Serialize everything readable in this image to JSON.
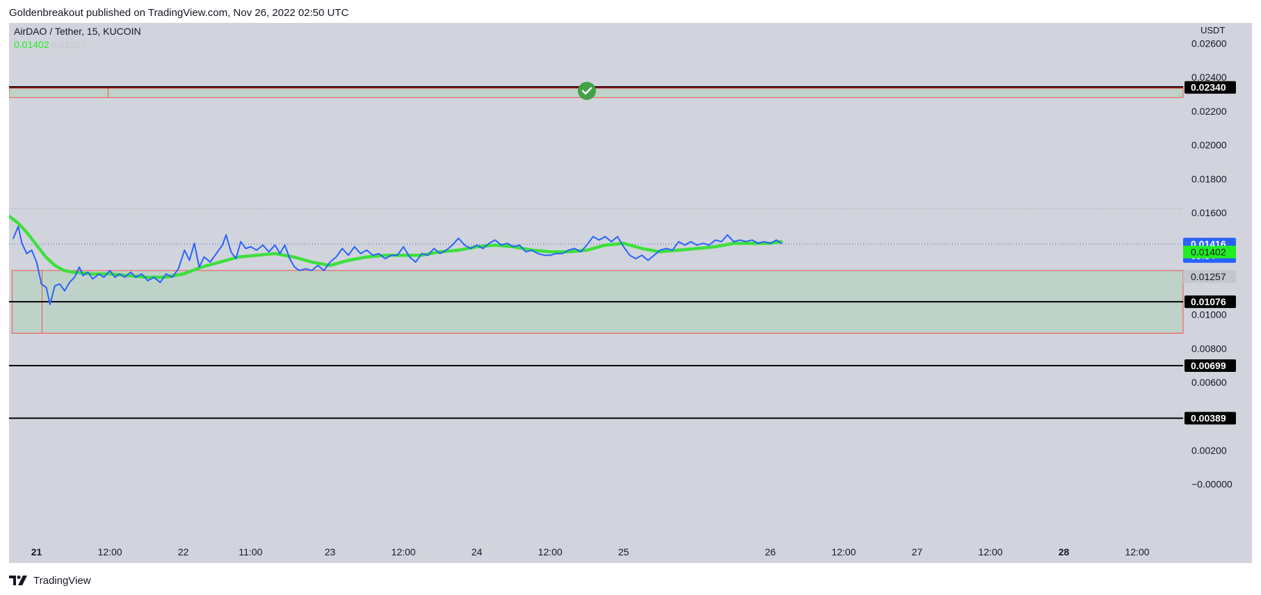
{
  "header": {
    "published_line": "Goldenbreakout published on TradingView.com, Nov 26, 2022 02:50 UTC"
  },
  "legend": {
    "symbol_line": "AirDAO / Tether, 15, KUCOIN",
    "value_1": "0.01402",
    "value_2": "0.01257"
  },
  "footer": {
    "brand": "TradingView"
  },
  "colors": {
    "price_line": "#2962ff",
    "ma_line": "#3de03d",
    "zone_fill": "#bcd1c6",
    "zone_border": "#ef5350",
    "level_line": "#000000",
    "check_badge": "#43a047",
    "background": "#d1d4dc"
  },
  "chart_data": {
    "type": "line",
    "symbol": "AirDAO / Tether",
    "interval": "15",
    "exchange": "KUCOIN",
    "y_unit": "USDT",
    "ylim": [
      -0.0001,
      0.0272
    ],
    "y_ticks": [
      "0.02600",
      "0.02400",
      "0.02200",
      "0.02000",
      "0.01800",
      "0.01600",
      "0.01000",
      "0.00800",
      "0.00600",
      "0.00200",
      "−0.00000"
    ],
    "y_tick_values": [
      0.026,
      0.024,
      0.022,
      0.02,
      0.018,
      0.016,
      0.01,
      0.008,
      0.006,
      0.002,
      0.0
    ],
    "x_range_hours": [
      -4.5,
      187.5
    ],
    "x_ticks": [
      {
        "label": "21",
        "h": 0,
        "bold": true
      },
      {
        "label": "12:00",
        "h": 12,
        "bold": false
      },
      {
        "label": "22",
        "h": 24,
        "bold": false
      },
      {
        "label": "11:00",
        "h": 35,
        "bold": false
      },
      {
        "label": "23",
        "h": 48,
        "bold": false
      },
      {
        "label": "12:00",
        "h": 60,
        "bold": false
      },
      {
        "label": "24",
        "h": 72,
        "bold": false
      },
      {
        "label": "12:00",
        "h": 84,
        "bold": false
      },
      {
        "label": "25",
        "h": 96,
        "bold": false
      },
      {
        "label": "26",
        "h": 120,
        "bold": false
      },
      {
        "label": "12:00",
        "h": 132,
        "bold": false
      },
      {
        "label": "27",
        "h": 144,
        "bold": false
      },
      {
        "label": "12:00",
        "h": 156,
        "bold": false
      },
      {
        "label": "28",
        "h": 168,
        "bold": true
      },
      {
        "label": "12:00",
        "h": 180,
        "bold": false
      }
    ],
    "series": [
      {
        "name": "",
        "color": "#2962ff",
        "points": [
          [
            -3.8,
            0.0145
          ],
          [
            -3.0,
            0.0152
          ],
          [
            -2.4,
            0.0142
          ],
          [
            -1.6,
            0.0136
          ],
          [
            -0.8,
            0.0138
          ],
          [
            0.0,
            0.0131
          ],
          [
            0.8,
            0.0118
          ],
          [
            1.6,
            0.0116
          ],
          [
            2.2,
            0.0106
          ],
          [
            3.0,
            0.0117
          ],
          [
            3.8,
            0.0118
          ],
          [
            4.6,
            0.0114
          ],
          [
            5.4,
            0.0119
          ],
          [
            6.2,
            0.0122
          ],
          [
            7.0,
            0.0128
          ],
          [
            7.6,
            0.0123
          ],
          [
            8.4,
            0.0125
          ],
          [
            9.2,
            0.0121
          ],
          [
            10.2,
            0.0124
          ],
          [
            11.0,
            0.0122
          ],
          [
            12.0,
            0.0126
          ],
          [
            12.8,
            0.0122
          ],
          [
            13.6,
            0.0124
          ],
          [
            14.4,
            0.0122
          ],
          [
            15.4,
            0.0125
          ],
          [
            16.2,
            0.0122
          ],
          [
            17.2,
            0.0124
          ],
          [
            18.2,
            0.012
          ],
          [
            19.2,
            0.0122
          ],
          [
            20.2,
            0.0119
          ],
          [
            21.2,
            0.0124
          ],
          [
            22.2,
            0.0122
          ],
          [
            23.2,
            0.0127
          ],
          [
            24.2,
            0.0138
          ],
          [
            25.0,
            0.0132
          ],
          [
            25.8,
            0.0142
          ],
          [
            26.6,
            0.0128
          ],
          [
            27.4,
            0.0134
          ],
          [
            28.4,
            0.0131
          ],
          [
            29.4,
            0.0136
          ],
          [
            30.4,
            0.0141
          ],
          [
            31.0,
            0.0147
          ],
          [
            31.8,
            0.0137
          ],
          [
            32.6,
            0.0133
          ],
          [
            33.4,
            0.0143
          ],
          [
            34.2,
            0.0139
          ],
          [
            35.0,
            0.014
          ],
          [
            36.0,
            0.0138
          ],
          [
            37.0,
            0.0141
          ],
          [
            38.0,
            0.0137
          ],
          [
            39.0,
            0.0141
          ],
          [
            39.8,
            0.0136
          ],
          [
            40.6,
            0.0141
          ],
          [
            41.4,
            0.0133
          ],
          [
            42.2,
            0.0128
          ],
          [
            43.0,
            0.0126
          ],
          [
            44.0,
            0.0127
          ],
          [
            45.0,
            0.0126
          ],
          [
            46.0,
            0.0129
          ],
          [
            47.0,
            0.0126
          ],
          [
            48.0,
            0.0131
          ],
          [
            49.0,
            0.0134
          ],
          [
            50.0,
            0.0139
          ],
          [
            51.0,
            0.0135
          ],
          [
            52.0,
            0.014
          ],
          [
            53.0,
            0.0136
          ],
          [
            54.0,
            0.0138
          ],
          [
            55.0,
            0.0135
          ],
          [
            56.0,
            0.0136
          ],
          [
            57.0,
            0.0133
          ],
          [
            58.0,
            0.0135
          ],
          [
            59.0,
            0.0135
          ],
          [
            60.0,
            0.014
          ],
          [
            61.0,
            0.0134
          ],
          [
            62.0,
            0.0131
          ],
          [
            63.0,
            0.0136
          ],
          [
            64.0,
            0.0135
          ],
          [
            65.0,
            0.0139
          ],
          [
            66.0,
            0.0136
          ],
          [
            67.0,
            0.0138
          ],
          [
            68.0,
            0.0141
          ],
          [
            69.0,
            0.0145
          ],
          [
            70.0,
            0.0141
          ],
          [
            71.0,
            0.0139
          ],
          [
            72.0,
            0.0141
          ],
          [
            73.0,
            0.0139
          ],
          [
            74.0,
            0.0142
          ],
          [
            75.0,
            0.0144
          ],
          [
            76.0,
            0.0141
          ],
          [
            77.0,
            0.0142
          ],
          [
            78.0,
            0.014
          ],
          [
            79.0,
            0.0141
          ],
          [
            80.0,
            0.0137
          ],
          [
            81.0,
            0.0138
          ],
          [
            82.0,
            0.0136
          ],
          [
            83.0,
            0.0135
          ],
          [
            84.0,
            0.0135
          ],
          [
            85.0,
            0.0136
          ],
          [
            86.0,
            0.0136
          ],
          [
            87.0,
            0.0138
          ],
          [
            88.0,
            0.0139
          ],
          [
            89.0,
            0.0137
          ],
          [
            90.0,
            0.0141
          ],
          [
            91.0,
            0.0146
          ],
          [
            92.0,
            0.0144
          ],
          [
            93.0,
            0.0146
          ],
          [
            94.0,
            0.0143
          ],
          [
            95.0,
            0.0146
          ],
          [
            96.0,
            0.014
          ],
          [
            97.0,
            0.0135
          ],
          [
            98.0,
            0.0133
          ],
          [
            99.0,
            0.0135
          ],
          [
            100.0,
            0.0132
          ],
          [
            101.0,
            0.0135
          ],
          [
            102.0,
            0.0138
          ],
          [
            103.0,
            0.0139
          ],
          [
            104.0,
            0.0138
          ],
          [
            105.0,
            0.0143
          ],
          [
            106.0,
            0.0141
          ],
          [
            107.0,
            0.0143
          ],
          [
            108.0,
            0.0141
          ],
          [
            109.0,
            0.0142
          ],
          [
            110.0,
            0.0141
          ],
          [
            111.0,
            0.0144
          ],
          [
            112.0,
            0.0143
          ],
          [
            113.0,
            0.0147
          ],
          [
            114.0,
            0.0143
          ],
          [
            115.0,
            0.0144
          ],
          [
            116.0,
            0.0143
          ],
          [
            117.0,
            0.0144
          ],
          [
            118.0,
            0.0142
          ],
          [
            119.0,
            0.0143
          ],
          [
            120.0,
            0.0142
          ],
          [
            121.0,
            0.0144
          ],
          [
            121.8,
            0.0142
          ]
        ]
      },
      {
        "name": "",
        "color": "#3de03d",
        "points": [
          [
            -4.5,
            0.0158
          ],
          [
            -3.0,
            0.0154
          ],
          [
            -1.5,
            0.0148
          ],
          [
            0.0,
            0.0141
          ],
          [
            1.5,
            0.0134
          ],
          [
            3.0,
            0.0129
          ],
          [
            4.5,
            0.0126
          ],
          [
            6.0,
            0.0125
          ],
          [
            9.0,
            0.0124
          ],
          [
            12.0,
            0.0124
          ],
          [
            15.0,
            0.0123
          ],
          [
            18.0,
            0.0122
          ],
          [
            21.0,
            0.0122
          ],
          [
            24.0,
            0.0124
          ],
          [
            27.0,
            0.0128
          ],
          [
            30.0,
            0.0131
          ],
          [
            33.0,
            0.0134
          ],
          [
            36.0,
            0.0135
          ],
          [
            39.0,
            0.0136
          ],
          [
            42.0,
            0.0134
          ],
          [
            45.0,
            0.0131
          ],
          [
            48.0,
            0.0129
          ],
          [
            51.0,
            0.0132
          ],
          [
            54.0,
            0.0134
          ],
          [
            57.0,
            0.0135
          ],
          [
            60.0,
            0.0135
          ],
          [
            63.0,
            0.0135
          ],
          [
            66.0,
            0.0137
          ],
          [
            69.0,
            0.0138
          ],
          [
            72.0,
            0.014
          ],
          [
            75.0,
            0.0141
          ],
          [
            78.0,
            0.014
          ],
          [
            81.0,
            0.0138
          ],
          [
            84.0,
            0.0137
          ],
          [
            87.0,
            0.0137
          ],
          [
            90.0,
            0.0138
          ],
          [
            93.0,
            0.0141
          ],
          [
            96.0,
            0.0142
          ],
          [
            99.0,
            0.0139
          ],
          [
            102.0,
            0.0137
          ],
          [
            105.0,
            0.0138
          ],
          [
            108.0,
            0.0139
          ],
          [
            111.0,
            0.014
          ],
          [
            114.0,
            0.0142
          ],
          [
            117.0,
            0.0142
          ],
          [
            120.0,
            0.0142
          ],
          [
            121.8,
            0.0143
          ]
        ]
      }
    ],
    "zones": [
      {
        "y_bottom": 0.0228,
        "y_top": 0.02345,
        "x_from_h": -4.5,
        "x_divider_h": 11.7
      },
      {
        "y_bottom": 0.0089,
        "y_top": 0.0126,
        "x_from_h": -4.0,
        "x_divider_h": 0.9
      }
    ],
    "levels": [
      {
        "value": 0.0234,
        "label": "0.02340",
        "thick": true
      },
      {
        "value": 0.01076,
        "label": "0.01076",
        "thick": false
      },
      {
        "value": 0.00699,
        "label": "0.00699",
        "thick": false
      },
      {
        "value": 0.00389,
        "label": "0.00389",
        "thick": false
      }
    ],
    "dotted_levels": [
      0.01625,
      0.01416
    ],
    "price_label": {
      "value": 0.01416,
      "label": "0.01416",
      "countdown": "09:34",
      "color": "#2962ff"
    },
    "ma_label": {
      "value": 0.01402,
      "label": "0.01402",
      "color": "#22ee22"
    },
    "ma2_label": {
      "value": 0.01257,
      "label": "0.01257",
      "color": "#c4c6cc"
    },
    "check_marker": {
      "x_h": 90.0,
      "y": 0.0234
    }
  }
}
